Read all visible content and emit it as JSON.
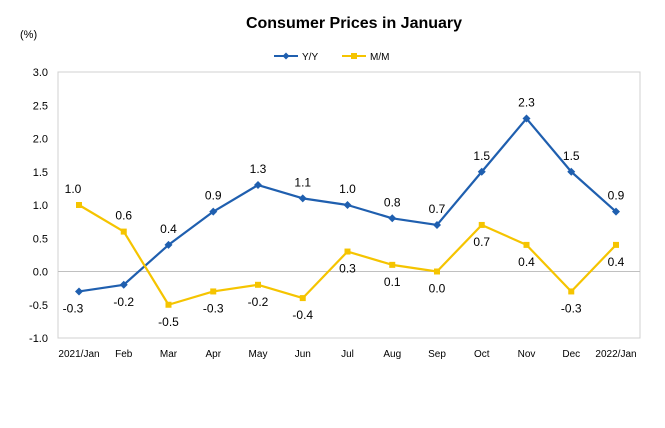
{
  "chart_data": {
    "type": "line",
    "title": "Consumer Prices in January",
    "ylabel": "(%)",
    "ylim": [
      -1.0,
      3.0
    ],
    "yticks": [
      "3.0",
      "2.5",
      "2.0",
      "1.5",
      "1.0",
      "0.5",
      "0.0",
      "-0.5",
      "-1.0"
    ],
    "yticks_values": [
      3.0,
      2.5,
      2.0,
      1.5,
      1.0,
      0.5,
      0.0,
      -0.5,
      -1.0
    ],
    "categories": [
      "2021/Jan",
      "Feb",
      "Mar",
      "Apr",
      "May",
      "Jun",
      "Jul",
      "Aug",
      "Sep",
      "Oct",
      "Nov",
      "Dec",
      "2022/Jan"
    ],
    "legend_position": "top-center",
    "grid": false,
    "series": [
      {
        "name": "Y/Y",
        "color": "#1F5FAF",
        "marker": "diamond",
        "values": [
          -0.3,
          -0.2,
          0.4,
          0.9,
          1.3,
          1.1,
          1.0,
          0.8,
          0.7,
          1.5,
          2.3,
          1.5,
          0.9
        ],
        "labels": [
          "-0.3",
          "-0.2",
          "0.4",
          "0.9",
          "1.3",
          "1.1",
          "1.0",
          "0.8",
          "0.7",
          "1.5",
          "2.3",
          "1.5",
          "0.9"
        ]
      },
      {
        "name": "M/M",
        "color": "#F5C400",
        "marker": "square",
        "values": [
          1.0,
          0.6,
          -0.5,
          -0.3,
          -0.2,
          -0.4,
          0.3,
          0.1,
          0.0,
          0.7,
          0.4,
          -0.3,
          0.4
        ],
        "labels": [
          "1.0",
          "0.6",
          "-0.5",
          "-0.3",
          "-0.2",
          "-0.4",
          "0.3",
          "0.1",
          "0.0",
          "0.7",
          "0.4",
          "-0.3",
          "0.4"
        ]
      }
    ]
  }
}
